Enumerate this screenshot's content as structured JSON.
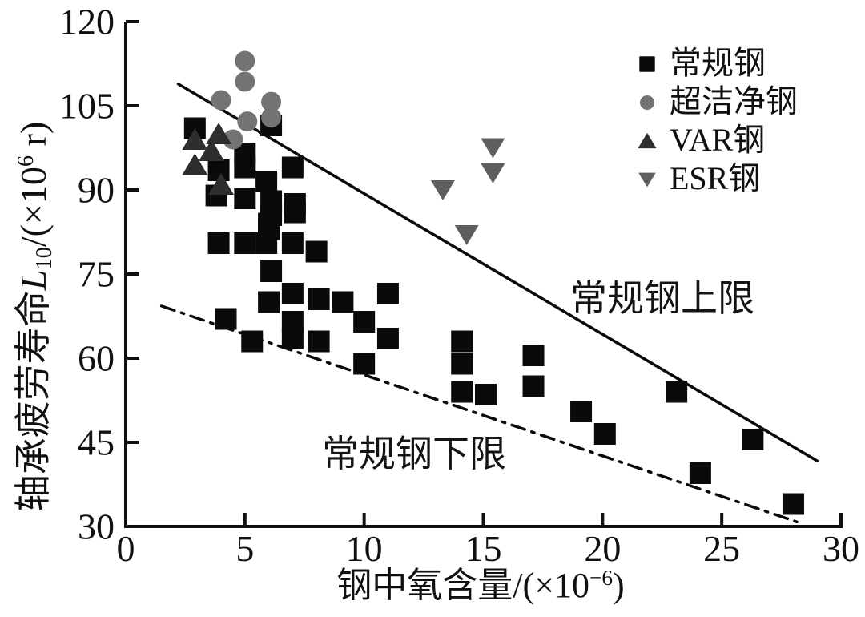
{
  "figure": {
    "xlabel_prefix": "钢中氧含量/(×10",
    "xlabel_sup": "−6",
    "xlabel_suffix": ")",
    "ylabel_part1": "轴承疲劳寿命",
    "ylabel_L": "L",
    "ylabel_sub": "10",
    "ylabel_part2": "/(×10",
    "ylabel_sup": "6",
    "ylabel_part3": " r)"
  },
  "chart_data": {
    "type": "scatter",
    "title": "",
    "xlabel": "钢中氧含量/(×10−6)",
    "ylabel": "轴承疲劳寿命L10/(×10^6 r)",
    "xlim": [
      0,
      30
    ],
    "ylim": [
      30,
      120
    ],
    "xticks": [
      0,
      5,
      10,
      15,
      20,
      25,
      30
    ],
    "yticks": [
      30,
      45,
      60,
      75,
      90,
      105,
      120
    ],
    "grid": false,
    "legend_position": "upper right",
    "axis_color": "#101010",
    "series": [
      {
        "name": "常规钢",
        "marker": "square",
        "color": "#0a0a0a",
        "points": [
          [
            2.9,
            101
          ],
          [
            3.9,
            93.5
          ],
          [
            3.8,
            89
          ],
          [
            5.0,
            96.5
          ],
          [
            5.0,
            94
          ],
          [
            6.1,
            101.5
          ],
          [
            5.0,
            88.5
          ],
          [
            5.9,
            91.5
          ],
          [
            6.1,
            88
          ],
          [
            6.1,
            85.5
          ],
          [
            7.1,
            87.5
          ],
          [
            7.1,
            86
          ],
          [
            7.0,
            94
          ],
          [
            6.0,
            84
          ],
          [
            5.0,
            80.5
          ],
          [
            5.9,
            80.5
          ],
          [
            3.9,
            80.5
          ],
          [
            6.0,
            83
          ],
          [
            8.0,
            79
          ],
          [
            7.0,
            80.5
          ],
          [
            6.1,
            75.5
          ],
          [
            6.0,
            70
          ],
          [
            7.0,
            71.5
          ],
          [
            8.1,
            70.5
          ],
          [
            9.1,
            70
          ],
          [
            11.0,
            71.5
          ],
          [
            4.2,
            67
          ],
          [
            5.3,
            63
          ],
          [
            7.0,
            66.5
          ],
          [
            7.0,
            63.5
          ],
          [
            8.1,
            63
          ],
          [
            10.0,
            66.5
          ],
          [
            11.0,
            63.5
          ],
          [
            10.0,
            59
          ],
          [
            14.1,
            63
          ],
          [
            14.1,
            59
          ],
          [
            14.1,
            54
          ],
          [
            15.1,
            53.5
          ],
          [
            17.1,
            60.5
          ],
          [
            17.1,
            55
          ],
          [
            19.1,
            50.5
          ],
          [
            20.1,
            46.5
          ],
          [
            23.1,
            54
          ],
          [
            26.3,
            45.5
          ],
          [
            24.1,
            39.5
          ],
          [
            28.0,
            34
          ]
        ]
      },
      {
        "name": "超洁净钢",
        "marker": "circle",
        "color": "#737373",
        "points": [
          [
            5.0,
            113
          ],
          [
            5.0,
            109.3
          ],
          [
            4.0,
            106
          ],
          [
            6.1,
            105.7
          ],
          [
            6.1,
            102.9
          ],
          [
            5.1,
            102.2
          ],
          [
            4.5,
            99
          ]
        ]
      },
      {
        "name": "VAR钢",
        "marker": "triangle-up",
        "color": "#2e2e2e",
        "points": [
          [
            2.9,
            99
          ],
          [
            3.9,
            100
          ],
          [
            3.6,
            97
          ],
          [
            2.9,
            94.5
          ],
          [
            4.0,
            91
          ]
        ]
      },
      {
        "name": "ESR钢",
        "marker": "triangle-down",
        "color": "#5d5e5e",
        "points": [
          [
            15.4,
            97.5
          ],
          [
            15.4,
            93
          ],
          [
            13.3,
            90
          ],
          [
            14.3,
            82
          ]
        ]
      }
    ],
    "lines": [
      {
        "name": "常规钢上限",
        "style": "solid",
        "color": "#0a0a0a",
        "from": [
          2.2,
          108.9
        ],
        "to": [
          29.0,
          41.7
        ]
      },
      {
        "name": "常规钢下限",
        "style": "dashdot",
        "color": "#0a0a0a",
        "from": [
          1.5,
          69.3
        ],
        "to": [
          28.3,
          30.6
        ]
      }
    ]
  }
}
